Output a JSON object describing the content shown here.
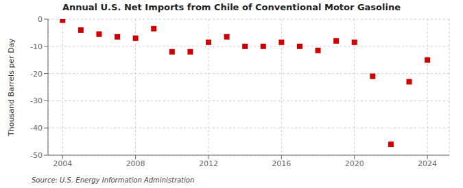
{
  "chart_data": {
    "type": "scatter",
    "title": "Annual U.S. Net Imports from Chile of Conventional Motor Gasoline",
    "y_label": "Thousand Barrels per Day",
    "annotations": [
      "Source: U.S. Energy Information Administration"
    ],
    "x": [
      2004,
      2005,
      2006,
      2007,
      2008,
      2009,
      2010,
      2011,
      2012,
      2013,
      2014,
      2015,
      2016,
      2017,
      2018,
      2019,
      2020,
      2021,
      2022,
      2023,
      2024
    ],
    "values": [
      -0.4,
      -4.0,
      -5.5,
      -6.5,
      -7.0,
      -3.5,
      -12.0,
      -12.0,
      -8.5,
      -6.5,
      -10.0,
      -10.0,
      -8.5,
      -10.0,
      -11.5,
      -8.0,
      -8.5,
      -21.0,
      -46.0,
      -23.0,
      -15.0
    ],
    "color": "#cc0000",
    "marker": "square",
    "xlim": [
      2003.2,
      2025.2
    ],
    "xticks": [
      2004,
      2008,
      2012,
      2016,
      2020,
      2024
    ],
    "ylim": [
      -50,
      0
    ],
    "yticks": [
      0,
      -10,
      -20,
      -30,
      -40,
      -50
    ],
    "grid": true
  }
}
